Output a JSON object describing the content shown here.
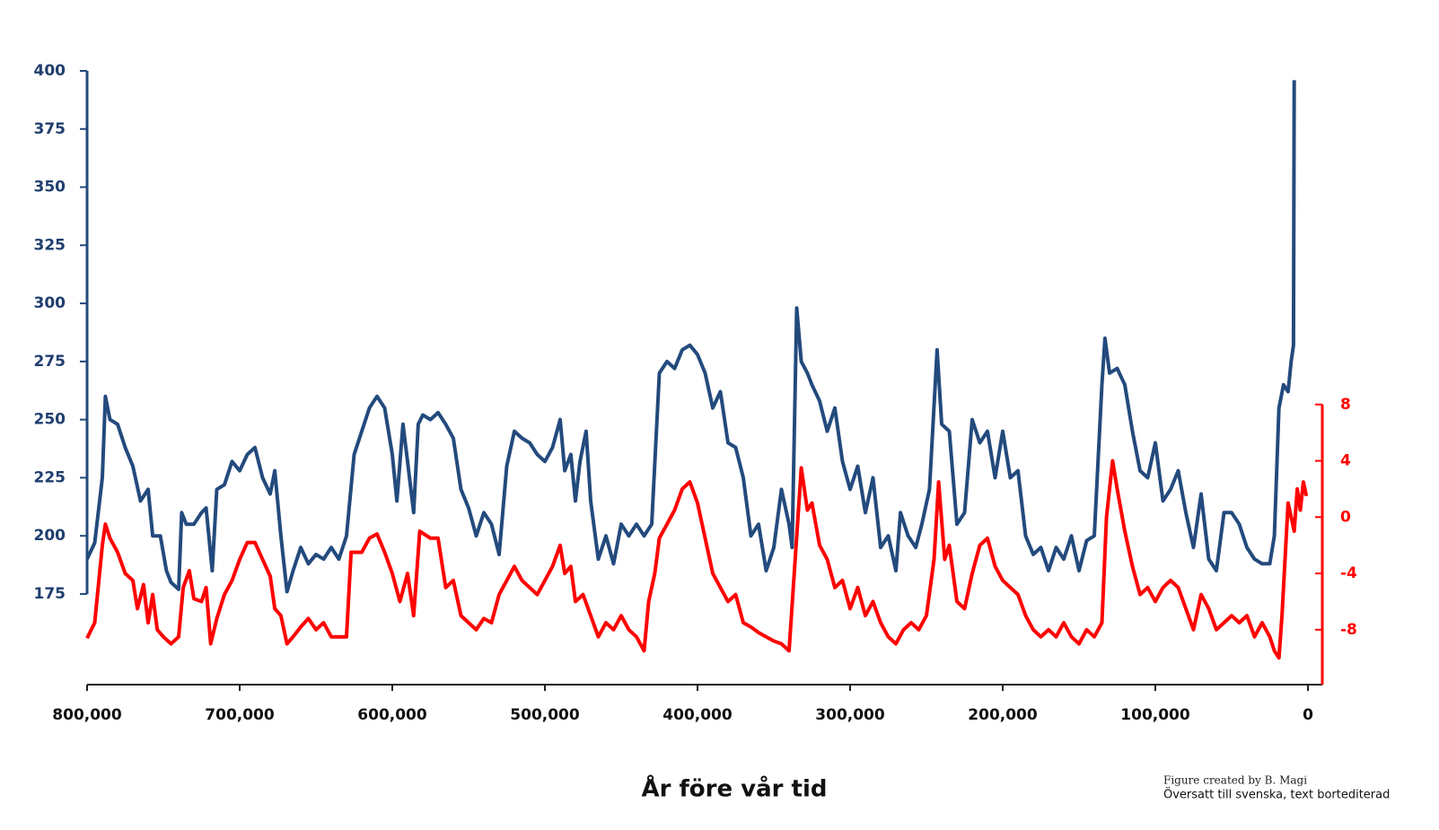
{
  "chart_data": {
    "type": "line",
    "xlabel": "År före vår tid",
    "credit": "Figure created by B. Magi",
    "note": "Översatt till svenska, text bortediterad",
    "xlim": [
      800000,
      0
    ],
    "xticks": [
      {
        "value": 800000,
        "label": "800,000"
      },
      {
        "value": 700000,
        "label": "700,000"
      },
      {
        "value": 600000,
        "label": "600,000"
      },
      {
        "value": 500000,
        "label": "500,000"
      },
      {
        "value": 400000,
        "label": "400,000"
      },
      {
        "value": 300000,
        "label": "300,000"
      },
      {
        "value": 200000,
        "label": "200,000"
      },
      {
        "value": 100000,
        "label": "100,000"
      },
      0
    ],
    "ylim": [
      136,
      400
    ],
    "yticks": [
      175,
      200,
      225,
      250,
      275,
      300,
      325,
      350,
      375,
      400
    ],
    "y2lim": [
      -11.9,
      31.7
    ],
    "y2ticks": [
      -8,
      -4,
      0,
      4,
      8
    ],
    "series": [
      {
        "color": "#234a7d",
        "x": [
          800000,
          795000,
          790000,
          788000,
          785000,
          780000,
          775000,
          770000,
          765000,
          760000,
          757000,
          752000,
          748000,
          745000,
          740000,
          738000,
          735000,
          730000,
          725000,
          722000,
          718000,
          715000,
          710000,
          705000,
          700000,
          695000,
          690000,
          685000,
          680000,
          677000,
          673000,
          669000,
          665000,
          660000,
          655000,
          650000,
          645000,
          640000,
          635000,
          630000,
          625000,
          620000,
          615000,
          610000,
          605000,
          600000,
          597000,
          593000,
          590000,
          586000,
          583000,
          580000,
          575000,
          570000,
          565000,
          560000,
          555000,
          550000,
          545000,
          540000,
          535000,
          530000,
          525000,
          520000,
          515000,
          510000,
          505000,
          500000,
          495000,
          490000,
          487000,
          483000,
          480000,
          477000,
          473000,
          470000,
          465000,
          460000,
          455000,
          450000,
          445000,
          440000,
          435000,
          430000,
          425000,
          420000,
          415000,
          410000,
          405000,
          400000,
          395000,
          390000,
          385000,
          380000,
          375000,
          370000,
          365000,
          360000,
          355000,
          350000,
          345000,
          340000,
          338000,
          335000,
          332000,
          328000,
          325000,
          320000,
          315000,
          310000,
          305000,
          300000,
          295000,
          290000,
          285000,
          280000,
          275000,
          270000,
          267000,
          262000,
          257000,
          253000,
          248000,
          243000,
          240000,
          235000,
          230000,
          225000,
          220000,
          215000,
          210000,
          205000,
          200000,
          195000,
          190000,
          185000,
          180000,
          175000,
          170000,
          165000,
          160000,
          155000,
          150000,
          145000,
          140000,
          135000,
          133000,
          130000,
          125000,
          120000,
          115000,
          110000,
          105000,
          100000,
          95000,
          90000,
          85000,
          80000,
          75000,
          70000,
          65000,
          60000,
          55000,
          50000,
          45000,
          40000,
          35000,
          30000,
          25000,
          22000,
          19000,
          16000,
          13000,
          11000,
          9500,
          9000
        ],
        "values": [
          190,
          197,
          225,
          260,
          250,
          248,
          238,
          230,
          215,
          220,
          200,
          200,
          185,
          180,
          177,
          210,
          205,
          205,
          210,
          212,
          185,
          220,
          222,
          232,
          228,
          235,
          238,
          225,
          218,
          228,
          200,
          176,
          185,
          195,
          188,
          192,
          190,
          195,
          190,
          200,
          235,
          245,
          255,
          260,
          255,
          235,
          215,
          248,
          232,
          210,
          248,
          252,
          250,
          253,
          248,
          242,
          220,
          212,
          200,
          210,
          205,
          192,
          230,
          245,
          242,
          240,
          235,
          232,
          238,
          250,
          228,
          235,
          215,
          232,
          245,
          215,
          190,
          200,
          188,
          205,
          200,
          205,
          200,
          205,
          270,
          275,
          272,
          280,
          282,
          278,
          270,
          255,
          262,
          240,
          238,
          225,
          200,
          205,
          185,
          195,
          220,
          205,
          195,
          298,
          275,
          270,
          265,
          258,
          245,
          255,
          232,
          220,
          230,
          210,
          225,
          195,
          200,
          185,
          210,
          200,
          195,
          205,
          220,
          280,
          248,
          245,
          205,
          210,
          250,
          240,
          245,
          225,
          245,
          225,
          228,
          200,
          192,
          195,
          185,
          195,
          190,
          200,
          185,
          198,
          200,
          265,
          285,
          270,
          272,
          265,
          245,
          228,
          225,
          240,
          215,
          220,
          228,
          210,
          195,
          218,
          190,
          185,
          210,
          210,
          205,
          195,
          190,
          188,
          188,
          200,
          255,
          265,
          262,
          275,
          282,
          396
        ]
      },
      {
        "color": "#ff0000",
        "axis": "y2",
        "x": [
          800000,
          795000,
          790000,
          788000,
          785000,
          780000,
          775000,
          770000,
          767000,
          763000,
          760000,
          757000,
          754000,
          750000,
          745000,
          740000,
          737000,
          733000,
          730000,
          725000,
          722000,
          719000,
          715000,
          710000,
          705000,
          700000,
          695000,
          690000,
          685000,
          680000,
          677000,
          673000,
          669000,
          665000,
          660000,
          655000,
          650000,
          645000,
          640000,
          635000,
          630000,
          627000,
          620000,
          615000,
          610000,
          605000,
          600000,
          595000,
          590000,
          586000,
          582000,
          575000,
          570000,
          565000,
          560000,
          555000,
          550000,
          545000,
          540000,
          535000,
          530000,
          525000,
          520000,
          515000,
          510000,
          505000,
          500000,
          495000,
          490000,
          487000,
          483000,
          480000,
          475000,
          470000,
          465000,
          460000,
          455000,
          450000,
          445000,
          440000,
          435000,
          432000,
          428000,
          425000,
          420000,
          415000,
          410000,
          405000,
          400000,
          395000,
          390000,
          385000,
          380000,
          375000,
          370000,
          365000,
          360000,
          355000,
          350000,
          345000,
          340000,
          336000,
          332000,
          328000,
          325000,
          320000,
          315000,
          310000,
          305000,
          300000,
          295000,
          290000,
          285000,
          280000,
          275000,
          270000,
          265000,
          260000,
          255000,
          250000,
          245000,
          242000,
          238000,
          235000,
          230000,
          225000,
          220000,
          215000,
          210000,
          205000,
          200000,
          195000,
          190000,
          185000,
          180000,
          175000,
          170000,
          165000,
          160000,
          155000,
          150000,
          145000,
          140000,
          135000,
          132000,
          128000,
          125000,
          120000,
          115000,
          110000,
          105000,
          100000,
          95000,
          90000,
          85000,
          80000,
          75000,
          70000,
          65000,
          60000,
          55000,
          50000,
          45000,
          40000,
          35000,
          30000,
          25000,
          22000,
          19000,
          17000,
          15000,
          13000,
          11000,
          9000,
          7000,
          5000,
          3000,
          1000
        ],
        "values": [
          -8.6,
          -7.5,
          -2,
          -0.5,
          -1.5,
          -2.5,
          -4,
          -4.5,
          -6.5,
          -4.8,
          -7.5,
          -5.5,
          -8,
          -8.5,
          -9,
          -8.5,
          -5,
          -3.8,
          -5.8,
          -6,
          -5,
          -9,
          -7.2,
          -5.5,
          -4.5,
          -3,
          -1.8,
          -1.8,
          -3,
          -4.2,
          -6.5,
          -7,
          -9,
          -8.5,
          -7.8,
          -7.2,
          -8,
          -7.5,
          -8.5,
          -8.5,
          -8.5,
          -2.5,
          -2.5,
          -1.5,
          -1.2,
          -2.5,
          -4,
          -6,
          -4,
          -7,
          -1,
          -1.5,
          -1.5,
          -5,
          -4.5,
          -7,
          -7.5,
          -8,
          -7.2,
          -7.5,
          -5.5,
          -4.5,
          -3.5,
          -4.5,
          -5,
          -5.5,
          -4.5,
          -3.5,
          -2,
          -4,
          -3.5,
          -6,
          -5.5,
          -7,
          -8.5,
          -7.5,
          -8,
          -7,
          -8,
          -8.5,
          -9.5,
          -6,
          -4,
          -1.5,
          -0.5,
          0.5,
          2,
          2.5,
          1,
          -1.5,
          -4,
          -5,
          -6,
          -5.5,
          -7.5,
          -7.8,
          -8.2,
          -8.5,
          -8.8,
          -9,
          -9.5,
          -3,
          3.5,
          0.5,
          1,
          -2,
          -3,
          -5,
          -4.5,
          -6.5,
          -5,
          -7,
          -6,
          -7.5,
          -8.5,
          -9,
          -8,
          -7.5,
          -8,
          -7,
          -3,
          2.5,
          -3,
          -2,
          -6,
          -6.5,
          -4,
          -2,
          -1.5,
          -3.5,
          -4.5,
          -5,
          -5.5,
          -7,
          -8,
          -8.5,
          -8,
          -8.5,
          -7.5,
          -8.5,
          -9,
          -8,
          -8.5,
          -7.5,
          0,
          4,
          2,
          -1,
          -3.5,
          -5.5,
          -5,
          -6,
          -5,
          -4.5,
          -5,
          -6.5,
          -8,
          -5.5,
          -6.5,
          -8,
          -7.5,
          -7,
          -7.5,
          -7,
          -8.5,
          -7.5,
          -8.5,
          -9.5,
          -10,
          -7,
          -3,
          1,
          0,
          -1,
          2,
          0.5,
          2.5,
          1.5
        ]
      }
    ]
  }
}
